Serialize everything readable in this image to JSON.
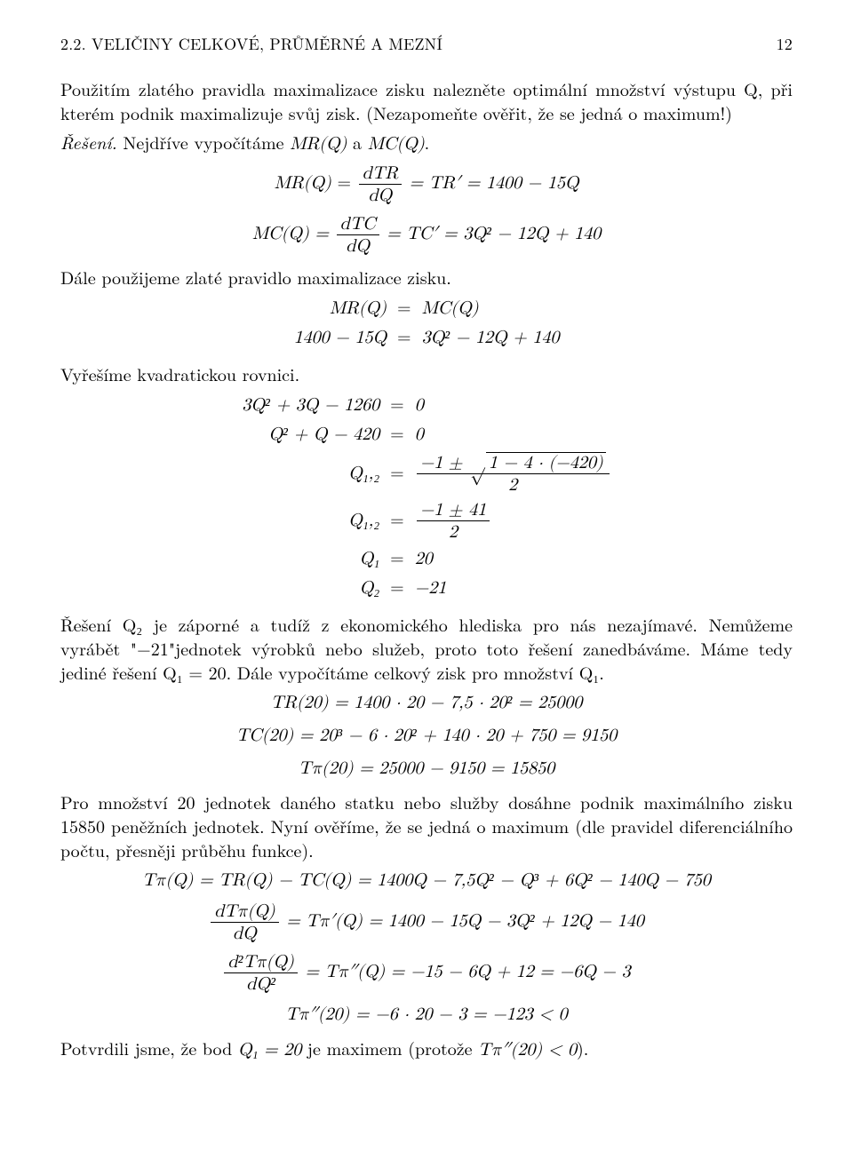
{
  "header": {
    "section": "2.2. VELIČINY CELKOVÉ, PRŮMĚRNÉ A MEZNÍ",
    "page": "12"
  },
  "p1": "Použitím zlatého pravidla maximalizace zisku nalezněte optimální množství výstupu Q, při kterém podnik maximalizuje svůj zisk. (Nezapomeňte ověřit, že se jedná o maximum!)",
  "reseni": "Řešení.",
  "p2a": "Nejdříve vypočítáme ",
  "p2b": " a ",
  "p2c": ".",
  "mr_label": "MR(Q)",
  "mc_label": "MC(Q)",
  "eq_mr": "MR(Q) =  dTR/dQ  = TR' = 1400 − 15Q",
  "eq_mr_frac_num": "dTR",
  "eq_mr_frac_den": "dQ",
  "eq_mr_right": " = TR′ = 1400 − 15Q",
  "eq_mc_left": "MC(Q) = ",
  "eq_mc_frac_num": "dTC",
  "eq_mc_frac_den": "dQ",
  "eq_mc_right": " = TC′ = 3Q² − 12Q + 140",
  "p3": "Dále použijeme zlaté pravidlo maximalizace zisku.",
  "sys1_l": "MR(Q)",
  "sys1_r": "MC(Q)",
  "sys2_l": "1400 − 15Q",
  "sys2_r": "3Q² − 12Q + 140",
  "p4": "Vyřešíme kvadratickou rovnici.",
  "q_l1": "3Q² + 3Q − 1260",
  "q_r1": "0",
  "q_l2": "Q² + Q − 420",
  "q_r2": "0",
  "q_l3": "Q₁,₂",
  "q_r3_num_a": "−1 ± ",
  "q_r3_radicand": "1 − 4 · (−420)",
  "q_r3_den": "2",
  "q_l4": "Q₁,₂",
  "q_r4_num": "−1 ± 41",
  "q_r4_den": "2",
  "q_l5": "Q₁",
  "q_r5": "20",
  "q_l6": "Q₂",
  "q_r6": "−21",
  "p5": "Řešení Q₂ je záporné a tudíž z ekonomického hlediska pro nás nezajímavé. Nemůžeme vyrábět \"−21\"jednotek výrobků nebo služeb, proto toto řešení zanedbáváme. Máme tedy jediné řešení Q₁ = 20. Dále vypočítáme celkový zisk pro množství Q₁.",
  "calc1": "TR(20) = 1400 · 20 − 7,5 · 20² = 25000",
  "calc2": "TC(20) = 20³ − 6 · 20² + 140 · 20 + 750 = 9150",
  "calc3": "Tπ(20) = 25000 − 9150 = 15850",
  "p6": "Pro množství 20 jednotek daného statku nebo služby dosáhne podnik maximálního zisku 15850 peněžních jednotek. Nyní ověříme, že se jedná o maximum (dle pravidel diferenciálního počtu, přesněji průběhu funkce).",
  "d1": "Tπ(Q) = TR(Q) − TC(Q) = 1400Q − 7,5Q² − Q³ + 6Q² − 140Q − 750",
  "d2_frac_num": "dTπ(Q)",
  "d2_frac_den": "dQ",
  "d2_right": " = Tπ′(Q) = 1400 − 15Q − 3Q² + 12Q − 140",
  "d3_frac_num": "d²Tπ(Q)",
  "d3_frac_den": "dQ²",
  "d3_right": " = Tπ″(Q) = −15 − 6Q + 12 = −6Q − 3",
  "d4": "Tπ″(20) = −6 · 20 − 3 = −123 < 0",
  "p7a": "Potvrdili jsme, že bod ",
  "p7b": "Q₁ = 20",
  "p7c": " je maximem (protože ",
  "p7d": "Tπ″(20) < 0",
  "p7e": ").",
  "eq_sign": "="
}
